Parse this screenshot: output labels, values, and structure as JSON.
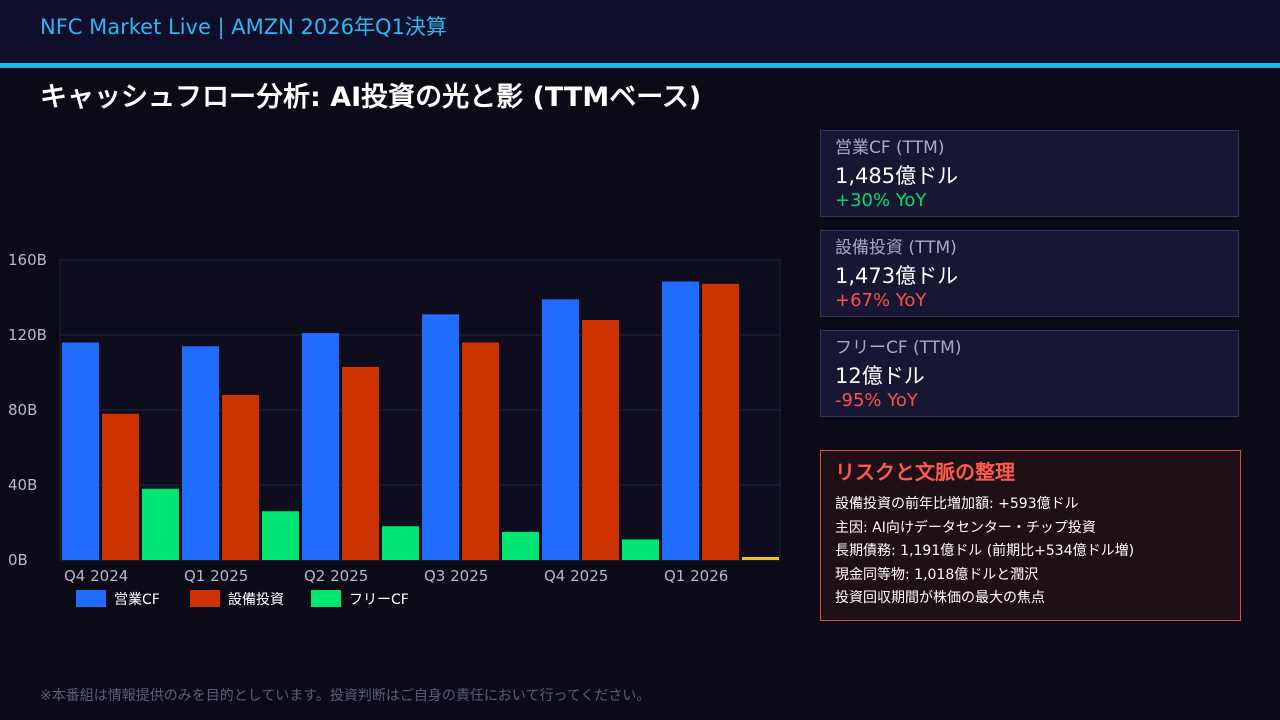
{
  "header": {
    "brand": "NFC Market Live  |  AMZN 2026年Q1決算"
  },
  "page_title": "キャッシュフロー分析: AI投資の光と影 (TTMベース)",
  "colors": {
    "operating_cf": "#1f6cff",
    "capex": "#cc3300",
    "free_cf": "#00e673",
    "positive": "#00dd66",
    "negative": "#ff4d4d",
    "accent": "#1bb8ee"
  },
  "chart_data": {
    "type": "bar",
    "categories": [
      "Q4 2024",
      "Q1 2025",
      "Q2 2025",
      "Q3 2025",
      "Q4 2025",
      "Q1 2026"
    ],
    "series": [
      {
        "name": "営業CF",
        "values": [
          116,
          114,
          121,
          131,
          139,
          148.5
        ]
      },
      {
        "name": "設備投資",
        "values": [
          78,
          88,
          103,
          116,
          128,
          147.3
        ]
      },
      {
        "name": "フリーCF",
        "values": [
          38,
          26,
          18,
          15,
          11,
          1.2
        ]
      }
    ],
    "yticks": [
      "0B",
      "40B",
      "80B",
      "120B",
      "160B"
    ],
    "ylim": [
      0,
      160
    ],
    "grid": true,
    "legend": "bottom-left"
  },
  "metrics": [
    {
      "label": "営業CF (TTM)",
      "value": "1,485億ドル",
      "change": "+30% YoY",
      "trend": "positive"
    },
    {
      "label": "設備投資 (TTM)",
      "value": "1,473億ドル",
      "change": "+67% YoY",
      "trend": "negative"
    },
    {
      "label": "フリーCF (TTM)",
      "value": "12億ドル",
      "change": "-95% YoY",
      "trend": "negative"
    }
  ],
  "risk": {
    "title": "リスクと文脈の整理",
    "items": [
      "設備投資の前年比増加額: +593億ドル",
      "主因: AI向けデータセンター・チップ投資",
      "長期債務: 1,191億ドル (前期比+534億ドル増)",
      "現金同等物: 1,018億ドルと潤沢",
      "投資回収期間が株価の最大の焦点"
    ]
  },
  "disclaimer": "※本番組は情報提供のみを目的としています。投資判断はご自身の責任において行ってください。"
}
